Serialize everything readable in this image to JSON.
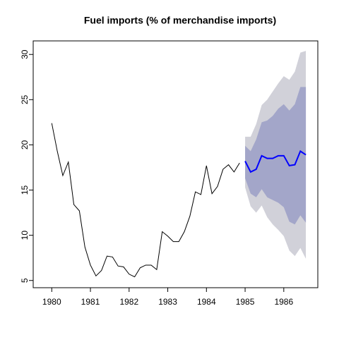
{
  "chart_data": {
    "type": "forecast",
    "title": "Fuel imports (% of merchandise imports)",
    "history": {
      "color": "#000000",
      "x": [
        1980.0,
        1980.143,
        1980.286,
        1980.429,
        1980.571,
        1980.714,
        1980.857,
        1981.0,
        1981.143,
        1981.286,
        1981.429,
        1981.571,
        1981.714,
        1981.857,
        1982.0,
        1982.143,
        1982.286,
        1982.429,
        1982.571,
        1982.714,
        1982.857,
        1983.0,
        1983.143,
        1983.286,
        1983.429,
        1983.571,
        1983.714,
        1983.857,
        1984.0,
        1984.143,
        1984.286,
        1984.429,
        1984.571,
        1984.714,
        1984.857
      ],
      "values": [
        22.4,
        19.3,
        16.6,
        18.1,
        13.4,
        12.7,
        8.7,
        6.7,
        5.5,
        6.1,
        7.7,
        7.6,
        6.6,
        6.5,
        5.7,
        5.4,
        6.4,
        6.7,
        6.7,
        6.2,
        10.4,
        9.9,
        9.3,
        9.3,
        10.4,
        12.1,
        14.8,
        14.5,
        17.7,
        14.6,
        15.4,
        17.3,
        17.8,
        17.0,
        18.0
      ]
    },
    "forecast": {
      "color": "#0000ff",
      "x": [
        1985.0,
        1985.143,
        1985.286,
        1985.429,
        1985.571,
        1985.714,
        1985.857,
        1986.0,
        1986.143,
        1986.286,
        1986.429,
        1986.571
      ],
      "values": [
        18.2,
        17.0,
        17.3,
        18.8,
        18.5,
        18.5,
        18.8,
        18.8,
        17.7,
        17.8,
        19.3,
        18.9
      ]
    },
    "bands": [
      {
        "color": "#d1d1d9",
        "lower": [
          15.3,
          13.2,
          12.5,
          13.3,
          12.0,
          11.2,
          10.6,
          9.9,
          8.3,
          7.7,
          8.6,
          7.4
        ],
        "upper": [
          20.9,
          20.9,
          22.3,
          24.4,
          25.0,
          25.9,
          26.8,
          27.6,
          27.2,
          28.1,
          30.2,
          30.4
        ]
      },
      {
        "color": "#a3a6c9",
        "lower": [
          16.3,
          14.6,
          14.2,
          15.1,
          14.2,
          13.9,
          13.6,
          13.1,
          11.5,
          11.2,
          12.2,
          11.4
        ],
        "upper": [
          19.9,
          19.3,
          20.6,
          22.5,
          22.7,
          23.2,
          24.0,
          24.5,
          23.8,
          24.5,
          26.4,
          26.4
        ]
      }
    ],
    "xlim": [
      1979.52,
      1986.88
    ],
    "ylim": [
      4.2,
      31.5
    ],
    "xticks": [
      1980,
      1981,
      1982,
      1983,
      1984,
      1985,
      1986
    ],
    "yticks": [
      5,
      10,
      15,
      20,
      25,
      30
    ]
  }
}
